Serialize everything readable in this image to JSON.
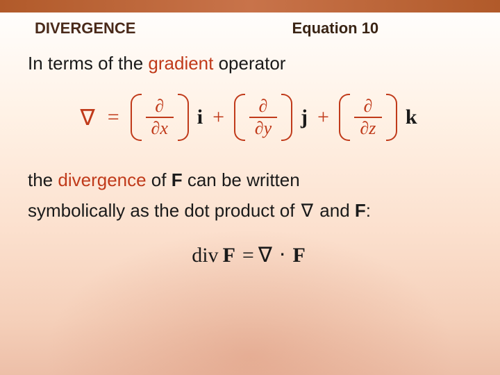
{
  "colors": {
    "topbar_from": "#b15a2a",
    "topbar_mid": "#c8734a",
    "accent": "#c03a1a",
    "text": "#1a1a1a",
    "heading": "#4a2a1a",
    "bg_top": "#ffffff",
    "bg_bottom": "#edbfa8"
  },
  "typography": {
    "body_font": "Arial",
    "math_font": "Times New Roman",
    "heading_fontsize_pt": 17,
    "body_fontsize_pt": 20,
    "math_fontsize_pt": 23
  },
  "header": {
    "title": "DIVERGENCE",
    "equation_label": "Equation 10"
  },
  "intro": {
    "pre": "In terms of the ",
    "gradient": "gradient",
    "post": " operator"
  },
  "eq1": {
    "type": "math-expression",
    "nabla": "∇",
    "equals": "=",
    "terms": [
      {
        "num": "∂",
        "den_op": "∂",
        "den_var": "x",
        "basis": "i"
      },
      {
        "num": "∂",
        "den_op": "∂",
        "den_var": "y",
        "basis": "j"
      },
      {
        "num": "∂",
        "den_op": "∂",
        "den_var": "z",
        "basis": "k"
      }
    ],
    "plus": "+",
    "color_fraction": "#c03a1a",
    "color_basis": "#1a1a1a"
  },
  "para2": {
    "t0": "the ",
    "divergence": "divergence",
    "t1": " of ",
    "F1": "F",
    "t2": " can be written",
    "t3": "symbolically as the dot product of ",
    "nabla": "∇",
    "t4": "and ",
    "F2": "F",
    "t5": ":"
  },
  "eq2": {
    "type": "math-expression",
    "div": "div",
    "F_left": "F",
    "equals": "=",
    "nabla": "∇",
    "dot": "⋅",
    "F_right": "F",
    "color": "#1a1a1a"
  }
}
